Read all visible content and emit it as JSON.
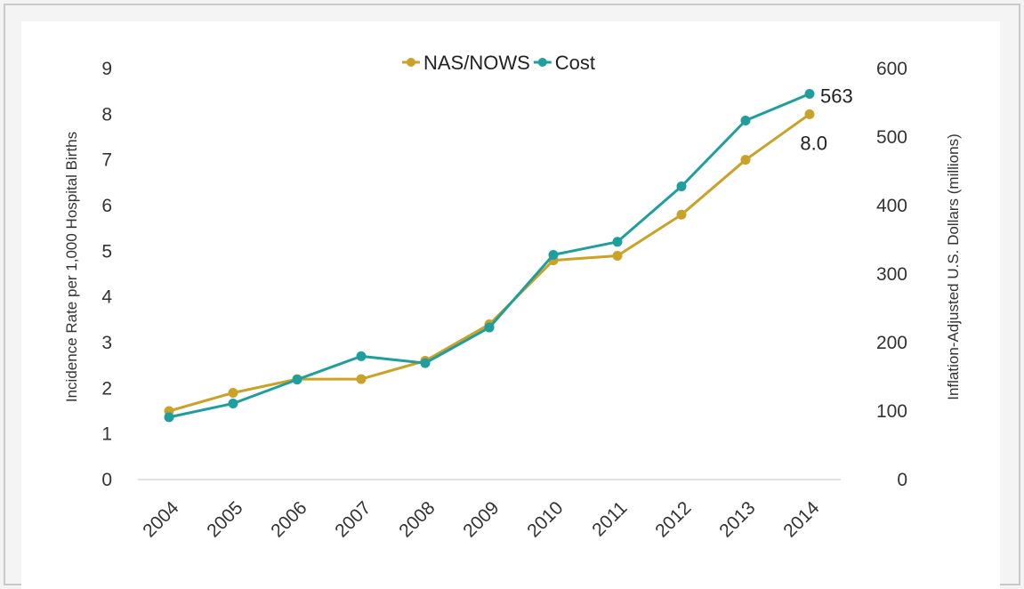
{
  "chart_data": {
    "type": "line",
    "title": "",
    "x": [
      "2004",
      "2005",
      "2006",
      "2007",
      "2008",
      "2009",
      "2010",
      "2011",
      "2012",
      "2013",
      "2014"
    ],
    "xlabel": "",
    "ylabel_left": "Incidence Rate per 1,000 Hospital Births",
    "ylabel_right": "Inflation-Adjusted U.S. Dollars (millions)",
    "ylim_left": [
      0,
      9
    ],
    "ylim_right": [
      0,
      600
    ],
    "yticks_left": [
      "0",
      "1",
      "2",
      "3",
      "4",
      "5",
      "6",
      "7",
      "8",
      "9"
    ],
    "yticks_right": [
      "0",
      "100",
      "200",
      "300",
      "400",
      "500",
      "600"
    ],
    "grid": false,
    "legend_position": "top-center",
    "series": [
      {
        "name": "NAS/NOWS",
        "axis": "left",
        "color": "#c9a227",
        "values": [
          1.5,
          1.9,
          2.2,
          2.2,
          2.6,
          3.4,
          4.8,
          4.9,
          5.8,
          7.0,
          8.0
        ],
        "end_label": "8.0"
      },
      {
        "name": "Cost",
        "axis": "right",
        "color": "#1f9e9e",
        "values": [
          91,
          111,
          146,
          180,
          170,
          222,
          328,
          347,
          428,
          524,
          563
        ],
        "end_label": "563"
      }
    ]
  }
}
